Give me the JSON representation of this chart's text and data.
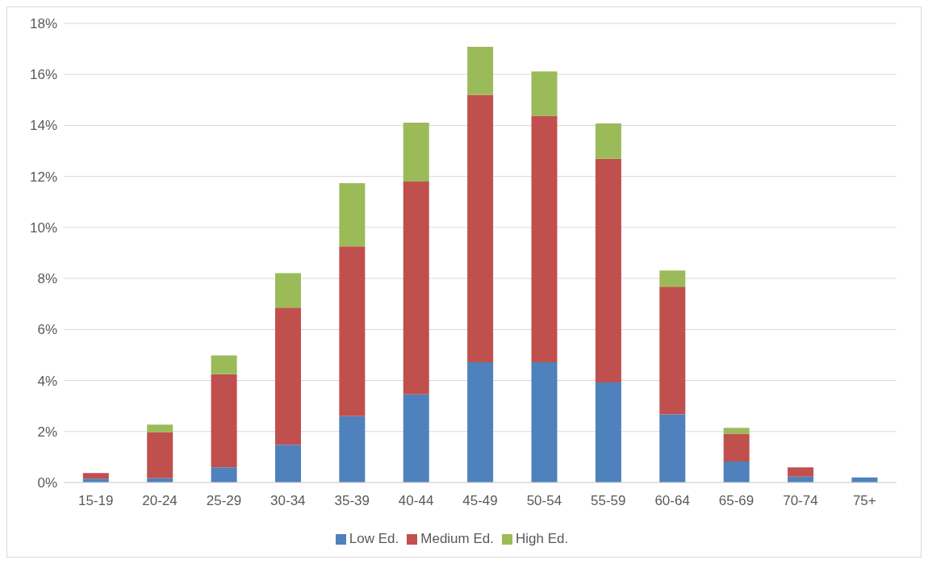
{
  "chart_data": {
    "type": "bar",
    "stacked": true,
    "categories": [
      "15-19",
      "20-24",
      "25-29",
      "30-34",
      "35-39",
      "40-44",
      "45-49",
      "50-54",
      "55-59",
      "60-64",
      "65-69",
      "70-74",
      "75+"
    ],
    "series": [
      {
        "name": "Low Ed.",
        "color": "#4f81bd",
        "values": [
          0.15,
          0.17,
          0.59,
          1.48,
          2.6,
          3.46,
          4.71,
          4.71,
          3.92,
          2.67,
          0.82,
          0.23,
          0.2
        ]
      },
      {
        "name": "Medium Ed.",
        "color": "#c0504d",
        "values": [
          0.22,
          1.81,
          3.66,
          5.38,
          6.66,
          8.34,
          10.49,
          9.67,
          8.77,
          5.01,
          1.09,
          0.36,
          0
        ]
      },
      {
        "name": "High Ed.",
        "color": "#9bbb59",
        "values": [
          0,
          0.29,
          0.73,
          1.35,
          2.48,
          2.31,
          1.88,
          1.74,
          1.39,
          0.63,
          0.23,
          null,
          0
        ]
      }
    ],
    "ylim": [
      0,
      18
    ],
    "yticks": [
      {
        "value": 0,
        "label": "0%"
      },
      {
        "value": 2,
        "label": "2%"
      },
      {
        "value": 4,
        "label": "4%"
      },
      {
        "value": 6,
        "label": "6%"
      },
      {
        "value": 8,
        "label": "8%"
      },
      {
        "value": 10,
        "label": "10%"
      },
      {
        "value": 12,
        "label": "12%"
      },
      {
        "value": 14,
        "label": "14%"
      },
      {
        "value": 16,
        "label": "16%"
      },
      {
        "value": 18,
        "label": "18%"
      }
    ],
    "grid": "y",
    "legend": "bottom"
  }
}
